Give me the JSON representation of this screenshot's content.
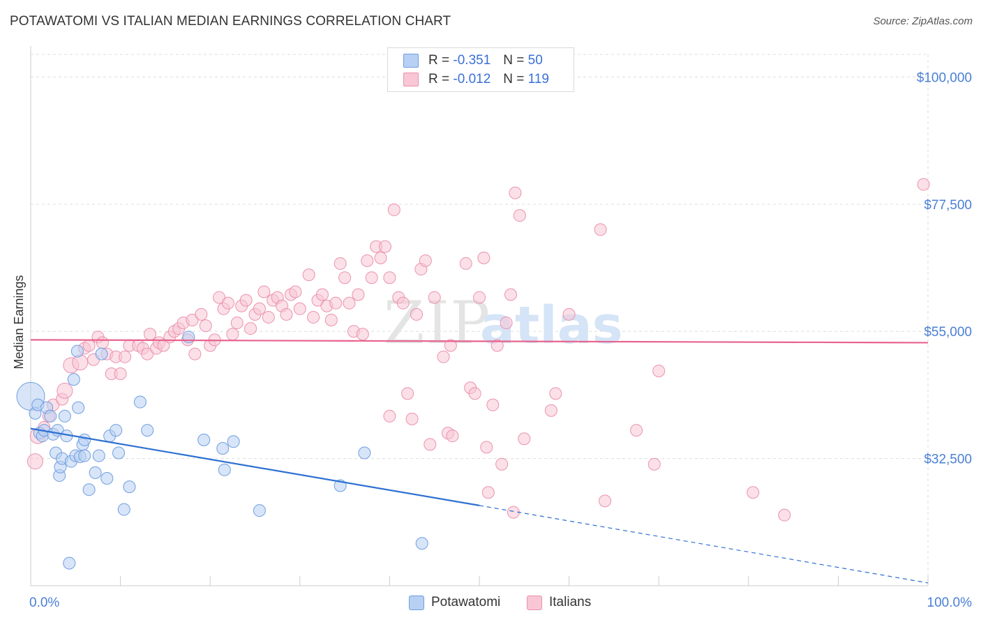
{
  "title": "POTAWATOMI VS ITALIAN MEDIAN EARNINGS CORRELATION CHART",
  "source": "Source: ZipAtlas.com",
  "watermark": {
    "zip": "ZIP",
    "atlas": "atlas"
  },
  "colors": {
    "blue_fill": "#b8d0f3",
    "blue_stroke": "#6f9ee0",
    "blue_line": "#2d70d2",
    "pink_fill": "#f8c6d5",
    "pink_stroke": "#eb92ae",
    "pink_line": "#e8638f",
    "axis_label": "#4a7fd6",
    "grid": "#dddddd"
  },
  "legend": {
    "rows": [
      {
        "series": "Potawatomi",
        "r_label": "R =",
        "r_value": "-0.351",
        "n_label": "N =",
        "n_value": "50"
      },
      {
        "series": "Italians",
        "r_label": "R =",
        "r_value": "-0.012",
        "n_label": "N =",
        "n_value": "119"
      }
    ]
  },
  "bottom_legend": [
    "Potawatomi",
    "Italians"
  ],
  "chart_data": {
    "type": "scatter",
    "xlabel": "",
    "ylabel": "Median Earnings",
    "xlim": [
      0,
      100
    ],
    "ylim": [
      10000,
      104000
    ],
    "x_tick_labels": [
      "0.0%",
      "100.0%"
    ],
    "y_ticks": [
      32500,
      55000,
      77500,
      100000
    ],
    "y_tick_labels": [
      "$32,500",
      "$55,000",
      "$77,500",
      "$100,000"
    ],
    "series": [
      {
        "name": "Potawatomi",
        "trend": {
          "x_start": 0,
          "y_start": 37800,
          "x_end_solid": 50,
          "y_end_solid": 24200,
          "x_end_dashed": 100,
          "y_end_dashed": 10500
        },
        "points": [
          [
            0,
            43.5,
            3
          ],
          [
            0.5,
            40.5,
            1
          ],
          [
            0.8,
            42,
            1
          ],
          [
            1,
            37,
            1
          ],
          [
            1.3,
            36.5,
            1
          ],
          [
            1.5,
            37.5,
            1
          ],
          [
            1.8,
            41.5,
            1
          ],
          [
            2.2,
            40,
            1
          ],
          [
            2.5,
            36.8,
            1
          ],
          [
            2.8,
            33.5,
            1
          ],
          [
            3,
            37.5,
            1
          ],
          [
            3.2,
            29.5,
            1
          ],
          [
            3.3,
            31,
            1
          ],
          [
            3.5,
            32.5,
            1
          ],
          [
            3.8,
            40,
            1
          ],
          [
            4,
            36.5,
            1
          ],
          [
            4.5,
            32,
            1
          ],
          [
            4.8,
            46.5,
            1
          ],
          [
            5,
            33,
            1
          ],
          [
            5.2,
            51.5,
            1
          ],
          [
            5.3,
            41.5,
            1
          ],
          [
            5.5,
            32.8,
            1
          ],
          [
            5.8,
            35,
            1
          ],
          [
            6,
            33,
            1
          ],
          [
            6,
            35.8,
            1
          ],
          [
            6.5,
            27,
            1
          ],
          [
            7.2,
            30,
            1
          ],
          [
            7.6,
            33,
            1
          ],
          [
            7.9,
            51,
            1
          ],
          [
            8.5,
            29,
            1
          ],
          [
            8.8,
            36.5,
            1
          ],
          [
            9.5,
            37.5,
            1
          ],
          [
            9.8,
            33.5,
            1
          ],
          [
            10.4,
            23.5,
            1
          ],
          [
            11,
            27.5,
            1
          ],
          [
            12.2,
            42.5,
            1
          ],
          [
            13,
            37.5,
            1
          ],
          [
            17.6,
            54,
            1
          ],
          [
            19.3,
            35.8,
            1
          ],
          [
            21.4,
            34.3,
            1
          ],
          [
            21.6,
            30.5,
            1
          ],
          [
            22.6,
            35.5,
            1
          ],
          [
            25.5,
            23.3,
            1
          ],
          [
            34.5,
            27.7,
            1
          ],
          [
            37.2,
            33.5,
            1
          ],
          [
            43.6,
            17.5,
            1
          ],
          [
            4.3,
            14,
            1
          ]
        ]
      },
      {
        "name": "Italians",
        "trend": {
          "x_start": 0,
          "y_start": 53500,
          "x_end": 100,
          "y_end": 53000
        },
        "points": [
          [
            0.5,
            32,
            2
          ],
          [
            0.8,
            36.5,
            2
          ],
          [
            1.5,
            38,
            1
          ],
          [
            2,
            40,
            1
          ],
          [
            2.5,
            42,
            1
          ],
          [
            3.5,
            43,
            1
          ],
          [
            3.8,
            44.5,
            2
          ],
          [
            4.5,
            49,
            2
          ],
          [
            5.5,
            49.5,
            2
          ],
          [
            6,
            52,
            1
          ],
          [
            6.5,
            52.5,
            1
          ],
          [
            7,
            50,
            1
          ],
          [
            7.5,
            54,
            1
          ],
          [
            8,
            53,
            1
          ],
          [
            8.5,
            51,
            1
          ],
          [
            9,
            47.5,
            1
          ],
          [
            9.5,
            50.5,
            1
          ],
          [
            10,
            47.5,
            1
          ],
          [
            10.5,
            50.5,
            1
          ],
          [
            11,
            52.5,
            1
          ],
          [
            12,
            52.5,
            1
          ],
          [
            12.5,
            52,
            1
          ],
          [
            13,
            51,
            1
          ],
          [
            13.3,
            54.5,
            1
          ],
          [
            14,
            52,
            1
          ],
          [
            14.3,
            53,
            1
          ],
          [
            14.8,
            52.5,
            1
          ],
          [
            15.5,
            54,
            1
          ],
          [
            16,
            55,
            1
          ],
          [
            16.5,
            55.5,
            1
          ],
          [
            17,
            56.5,
            1
          ],
          [
            17.5,
            53.5,
            1
          ],
          [
            18,
            57,
            1
          ],
          [
            18.3,
            51,
            1
          ],
          [
            19,
            58,
            1
          ],
          [
            19.5,
            56,
            1
          ],
          [
            20,
            52.5,
            1
          ],
          [
            20.5,
            53.5,
            1
          ],
          [
            21,
            61,
            1
          ],
          [
            21.5,
            59,
            1
          ],
          [
            22,
            60,
            1
          ],
          [
            22.5,
            54.5,
            1
          ],
          [
            23,
            56.5,
            1
          ],
          [
            23.5,
            59.5,
            1
          ],
          [
            24,
            60.5,
            1
          ],
          [
            24.5,
            55.5,
            1
          ],
          [
            25,
            58,
            1
          ],
          [
            25.5,
            59,
            1
          ],
          [
            26,
            62,
            1
          ],
          [
            26.5,
            57.5,
            1
          ],
          [
            27,
            60.5,
            1
          ],
          [
            27.5,
            61,
            1
          ],
          [
            28,
            59.5,
            1
          ],
          [
            28.5,
            58,
            1
          ],
          [
            29,
            61.5,
            1
          ],
          [
            29.5,
            62,
            1
          ],
          [
            30,
            59,
            1
          ],
          [
            31,
            65,
            1
          ],
          [
            31.5,
            57.5,
            1
          ],
          [
            32,
            60.5,
            1
          ],
          [
            32.5,
            61.5,
            1
          ],
          [
            33,
            59.5,
            1
          ],
          [
            33.5,
            57,
            1
          ],
          [
            34,
            60,
            1
          ],
          [
            34.5,
            67,
            1
          ],
          [
            35,
            64.5,
            1
          ],
          [
            35.5,
            60,
            1
          ],
          [
            36,
            55,
            1
          ],
          [
            36.5,
            61.5,
            1
          ],
          [
            37,
            54.5,
            1
          ],
          [
            37.5,
            67.5,
            1
          ],
          [
            38,
            64.5,
            1
          ],
          [
            38.5,
            70,
            1
          ],
          [
            39,
            68,
            1
          ],
          [
            39.5,
            70,
            1
          ],
          [
            40,
            64.5,
            1
          ],
          [
            40,
            40,
            1
          ],
          [
            40.5,
            76.5,
            1
          ],
          [
            41,
            61,
            1
          ],
          [
            41.5,
            60,
            1
          ],
          [
            42,
            44,
            1
          ],
          [
            42.5,
            39.5,
            1
          ],
          [
            43,
            58,
            1
          ],
          [
            43.5,
            66,
            1
          ],
          [
            44,
            67.5,
            1
          ],
          [
            44.5,
            35,
            1
          ],
          [
            45,
            61,
            1
          ],
          [
            46,
            50.5,
            1
          ],
          [
            46.5,
            37,
            1
          ],
          [
            46.8,
            52.5,
            1
          ],
          [
            47,
            36.5,
            1
          ],
          [
            48.5,
            67,
            1
          ],
          [
            49,
            45,
            1
          ],
          [
            49.5,
            44,
            1
          ],
          [
            50,
            61,
            1
          ],
          [
            50.5,
            68,
            1
          ],
          [
            50.8,
            34.5,
            1
          ],
          [
            51,
            26.5,
            1
          ],
          [
            51.5,
            42,
            1
          ],
          [
            52,
            52.5,
            1
          ],
          [
            52.5,
            31.5,
            1
          ],
          [
            53,
            56.5,
            1
          ],
          [
            53.5,
            61.5,
            1
          ],
          [
            53.8,
            23,
            1
          ],
          [
            54,
            79.5,
            1
          ],
          [
            54.5,
            75.5,
            1
          ],
          [
            55,
            36,
            1
          ],
          [
            58,
            41,
            1
          ],
          [
            58.5,
            44,
            1
          ],
          [
            60,
            58,
            1
          ],
          [
            63.5,
            73,
            1
          ],
          [
            64,
            25,
            1
          ],
          [
            67.5,
            37.5,
            1
          ],
          [
            69.5,
            31.5,
            1
          ],
          [
            70,
            48,
            1
          ],
          [
            80.5,
            26.5,
            1
          ],
          [
            84,
            22.5,
            1
          ],
          [
            99.5,
            81,
            1
          ]
        ]
      }
    ]
  }
}
